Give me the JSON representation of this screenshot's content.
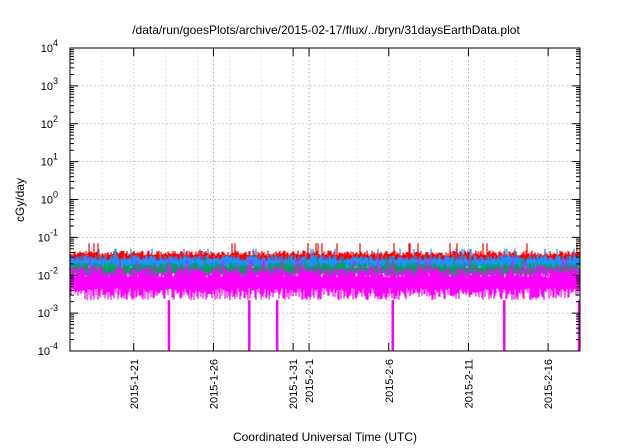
{
  "chart_data": {
    "type": "line",
    "title": "/data/run/goesPlots/archive/2015-02-17/flux/../bryn/31daysEarthData.plot",
    "xlabel": "Coordinated Universal Time (UTC)",
    "ylabel": "cGy/day",
    "x_range": [
      "2015-01-17",
      "2015-02-18"
    ],
    "ylim": [
      0.0001,
      10000
    ],
    "y_scale": "log",
    "grid": true,
    "x_ticks": [
      {
        "date": "2015-01-21",
        "label": "2015-1-21"
      },
      {
        "date": "2015-01-26",
        "label": "2015-1-26"
      },
      {
        "date": "2015-01-31",
        "label": "2015-1-31"
      },
      {
        "date": "2015-02-01",
        "label": "2015-2-1"
      },
      {
        "date": "2015-02-06",
        "label": "2015-2-6"
      },
      {
        "date": "2015-02-11",
        "label": "2015-2-11"
      },
      {
        "date": "2015-02-16",
        "label": "2015-2-16"
      }
    ],
    "y_ticks": [
      {
        "value": 0.0001,
        "base": "10",
        "exp": "-4"
      },
      {
        "value": 0.001,
        "base": "10",
        "exp": "-3"
      },
      {
        "value": 0.01,
        "base": "10",
        "exp": "-2"
      },
      {
        "value": 0.1,
        "base": "10",
        "exp": "-1"
      },
      {
        "value": 1,
        "base": "10",
        "exp": "0"
      },
      {
        "value": 10,
        "base": "10",
        "exp": "1"
      },
      {
        "value": 100,
        "base": "10",
        "exp": "2"
      },
      {
        "value": 1000,
        "base": "10",
        "exp": "3"
      },
      {
        "value": 10000,
        "base": "10",
        "exp": "4"
      }
    ],
    "series": [
      {
        "color": "#ff0000",
        "typical_min": 0.018,
        "typical_max": 0.045,
        "peak": 0.07
      },
      {
        "color": "#1e90ff",
        "typical_min": 0.012,
        "typical_max": 0.035,
        "peak": 0.05
      },
      {
        "color": "#00a060",
        "typical_min": 0.008,
        "typical_max": 0.022,
        "peak": 0.03
      },
      {
        "color": "#ff00ff",
        "typical_min": 0.0022,
        "typical_max": 0.018,
        "peak": 0.025,
        "dropouts": [
          "2015-01-23T05:00",
          "2015-01-28T06:00",
          "2015-01-30T00:00",
          "2015-02-06T06:00",
          "2015-02-13T06:00",
          "2015-02-18T00:00"
        ]
      }
    ]
  }
}
